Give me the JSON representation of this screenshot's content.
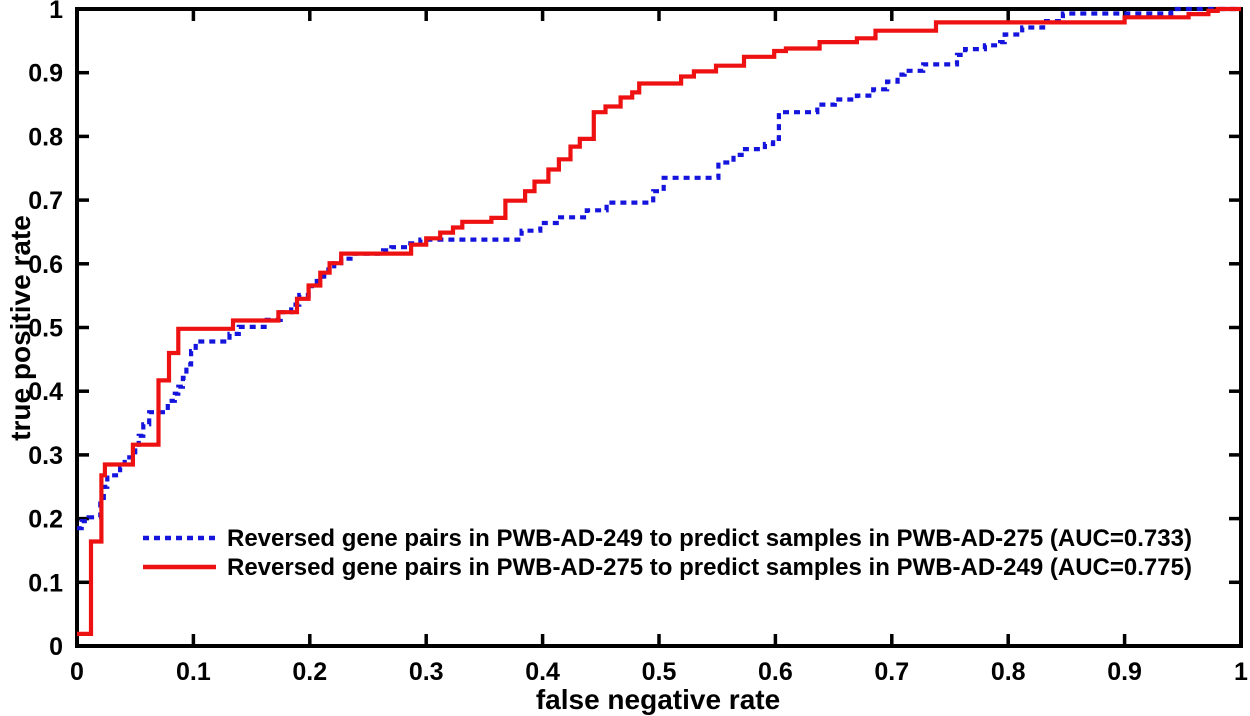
{
  "chart_data": {
    "type": "line",
    "subtype": "roc-step-curves",
    "title": "",
    "xlabel": "false negative rate",
    "ylabel": "true positive rate",
    "xlim": [
      0,
      1
    ],
    "ylim": [
      0,
      1
    ],
    "xticklabels": [
      "0",
      "0.1",
      "0.2",
      "0.3",
      "0.4",
      "0.5",
      "0.6",
      "0.7",
      "0.8",
      "0.9",
      "1"
    ],
    "yticklabels": [
      "0",
      "0.1",
      "0.2",
      "0.3",
      "0.4",
      "0.5",
      "0.6",
      "0.7",
      "0.8",
      "0.9",
      "1"
    ],
    "grid": "off",
    "box": "on",
    "axis_color": "#000000",
    "legend_position": "inside-lower-middle",
    "series": [
      {
        "label": "Reversed gene pairs in PWB-AD-249 to predict samples in PWB-AD-275 (AUC=0.733)",
        "auc": 0.733,
        "color": "#1414dd",
        "line_style": "dotted",
        "points": [
          [
            0,
            0.185
          ],
          [
            0.004,
            0.196
          ],
          [
            0.01,
            0.202
          ],
          [
            0.02,
            0.228
          ],
          [
            0.023,
            0.25
          ],
          [
            0.026,
            0.268
          ],
          [
            0.037,
            0.28
          ],
          [
            0.041,
            0.296
          ],
          [
            0.05,
            0.316
          ],
          [
            0.053,
            0.33
          ],
          [
            0.057,
            0.348
          ],
          [
            0.062,
            0.367
          ],
          [
            0.078,
            0.385
          ],
          [
            0.084,
            0.396
          ],
          [
            0.087,
            0.407
          ],
          [
            0.091,
            0.421
          ],
          [
            0.094,
            0.442
          ],
          [
            0.098,
            0.463
          ],
          [
            0.102,
            0.478
          ],
          [
            0.131,
            0.49
          ],
          [
            0.139,
            0.501
          ],
          [
            0.163,
            0.512
          ],
          [
            0.175,
            0.524
          ],
          [
            0.184,
            0.536
          ],
          [
            0.191,
            0.551
          ],
          [
            0.199,
            0.565
          ],
          [
            0.206,
            0.573
          ],
          [
            0.211,
            0.58
          ],
          [
            0.216,
            0.591
          ],
          [
            0.221,
            0.601
          ],
          [
            0.227,
            0.608
          ],
          [
            0.235,
            0.616
          ],
          [
            0.263,
            0.621
          ],
          [
            0.27,
            0.626
          ],
          [
            0.284,
            0.632
          ],
          [
            0.295,
            0.638
          ],
          [
            0.382,
            0.652
          ],
          [
            0.398,
            0.664
          ],
          [
            0.415,
            0.673
          ],
          [
            0.438,
            0.684
          ],
          [
            0.455,
            0.696
          ],
          [
            0.495,
            0.714
          ],
          [
            0.504,
            0.735
          ],
          [
            0.551,
            0.759
          ],
          [
            0.564,
            0.771
          ],
          [
            0.571,
            0.78
          ],
          [
            0.591,
            0.788
          ],
          [
            0.598,
            0.796
          ],
          [
            0.603,
            0.838
          ],
          [
            0.636,
            0.85
          ],
          [
            0.651,
            0.858
          ],
          [
            0.67,
            0.864
          ],
          [
            0.684,
            0.874
          ],
          [
            0.696,
            0.886
          ],
          [
            0.705,
            0.897
          ],
          [
            0.711,
            0.903
          ],
          [
            0.727,
            0.913
          ],
          [
            0.756,
            0.928
          ],
          [
            0.763,
            0.937
          ],
          [
            0.78,
            0.943
          ],
          [
            0.793,
            0.948
          ],
          [
            0.797,
            0.96
          ],
          [
            0.812,
            0.971
          ],
          [
            0.83,
            0.981
          ],
          [
            0.847,
            0.993
          ],
          [
            0.94,
            1
          ],
          [
            1,
            1
          ]
        ]
      },
      {
        "label": "Reversed gene pairs in PWB-AD-275 to predict samples in PWB-AD-249 (AUC=0.775)",
        "auc": 0.775,
        "color": "#ee1111",
        "line_style": "solid",
        "points": [
          [
            0,
            0.019
          ],
          [
            0.012,
            0.164
          ],
          [
            0.021,
            0.268
          ],
          [
            0.024,
            0.285
          ],
          [
            0.048,
            0.316
          ],
          [
            0.07,
            0.417
          ],
          [
            0.079,
            0.46
          ],
          [
            0.087,
            0.498
          ],
          [
            0.134,
            0.511
          ],
          [
            0.173,
            0.524
          ],
          [
            0.189,
            0.545
          ],
          [
            0.199,
            0.566
          ],
          [
            0.209,
            0.586
          ],
          [
            0.217,
            0.601
          ],
          [
            0.227,
            0.616
          ],
          [
            0.287,
            0.63
          ],
          [
            0.3,
            0.64
          ],
          [
            0.312,
            0.649
          ],
          [
            0.323,
            0.657
          ],
          [
            0.331,
            0.666
          ],
          [
            0.356,
            0.672
          ],
          [
            0.368,
            0.699
          ],
          [
            0.385,
            0.714
          ],
          [
            0.393,
            0.729
          ],
          [
            0.405,
            0.748
          ],
          [
            0.414,
            0.764
          ],
          [
            0.424,
            0.784
          ],
          [
            0.432,
            0.796
          ],
          [
            0.444,
            0.838
          ],
          [
            0.454,
            0.847
          ],
          [
            0.467,
            0.861
          ],
          [
            0.477,
            0.869
          ],
          [
            0.483,
            0.883
          ],
          [
            0.519,
            0.894
          ],
          [
            0.53,
            0.902
          ],
          [
            0.549,
            0.911
          ],
          [
            0.573,
            0.925
          ],
          [
            0.599,
            0.934
          ],
          [
            0.609,
            0.938
          ],
          [
            0.638,
            0.948
          ],
          [
            0.67,
            0.954
          ],
          [
            0.686,
            0.966
          ],
          [
            0.738,
            0.979
          ],
          [
            0.9,
            0.987
          ],
          [
            0.955,
            0.992
          ],
          [
            0.972,
            0.997
          ],
          [
            0.98,
            1
          ],
          [
            1,
            1
          ]
        ]
      }
    ]
  }
}
